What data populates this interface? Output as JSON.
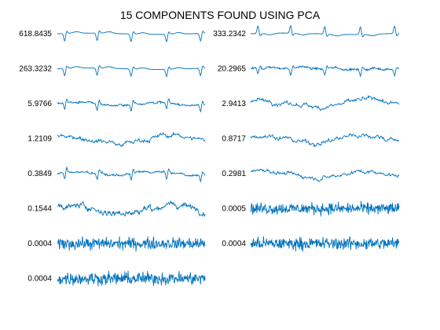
{
  "chart_data": {
    "type": "line",
    "title": "15 COMPONENTS FOUND USING PCA",
    "xlabel": "",
    "ylabel": "",
    "grid": false,
    "axes_visible": false,
    "legend": "none",
    "layout": "two-column grid of small line plots, 8 rows",
    "line_color": "#0072BD",
    "note": "Each panel shows one principal component signal; label is its variance value.",
    "components": [
      {
        "label": "618.8435",
        "kind": "ecg"
      },
      {
        "label": "333.2342",
        "kind": "ecg-inverted"
      },
      {
        "label": "263.3232",
        "kind": "ecg-soft"
      },
      {
        "label": "20.2965",
        "kind": "ecg-noisy"
      },
      {
        "label": "5.9766",
        "kind": "spiky"
      },
      {
        "label": "2.9413",
        "kind": "wavy"
      },
      {
        "label": "1.2109",
        "kind": "wavy"
      },
      {
        "label": "0.8717",
        "kind": "wavy"
      },
      {
        "label": "0.3849",
        "kind": "spiky"
      },
      {
        "label": "0.2981",
        "kind": "wavy"
      },
      {
        "label": "0.1544",
        "kind": "wavy-noisy"
      },
      {
        "label": "0.0005",
        "kind": "noise"
      },
      {
        "label": "0.0004",
        "kind": "noise"
      },
      {
        "label": "0.0004",
        "kind": "noise"
      },
      {
        "label": "0.0004",
        "kind": "noise"
      }
    ]
  }
}
